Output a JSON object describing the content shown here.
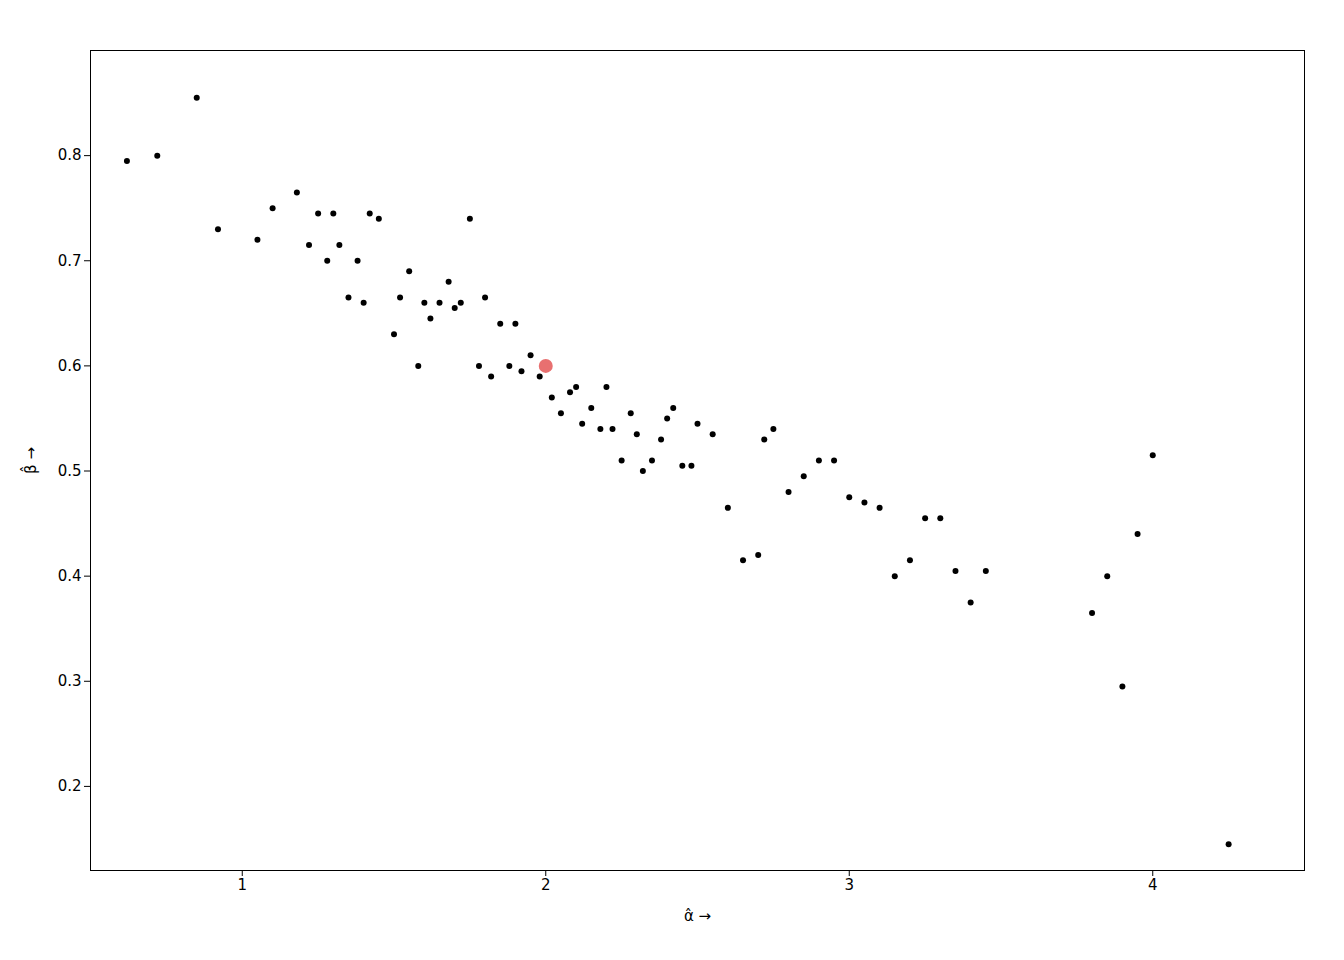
{
  "chart_data": {
    "type": "scatter",
    "xlabel": "α̂",
    "ylabel": "β̂",
    "xlim": [
      0.5,
      4.5
    ],
    "ylim": [
      0.12,
      0.9
    ],
    "xticks": [
      1,
      2,
      3,
      4
    ],
    "yticks": [
      0.2,
      0.3,
      0.4,
      0.5,
      0.6,
      0.7,
      0.8
    ],
    "grid": false,
    "series": [
      {
        "color": "#000000",
        "x": [
          0.62,
          0.72,
          0.85,
          0.92,
          1.05,
          1.1,
          1.18,
          1.22,
          1.25,
          1.28,
          1.3,
          1.32,
          1.35,
          1.38,
          1.4,
          1.42,
          1.45,
          1.5,
          1.52,
          1.55,
          1.58,
          1.6,
          1.62,
          1.65,
          1.68,
          1.7,
          1.72,
          1.75,
          1.78,
          1.8,
          1.82,
          1.85,
          1.88,
          1.9,
          1.92,
          1.95,
          1.98,
          2.0,
          2.02,
          2.05,
          2.08,
          2.1,
          2.12,
          2.15,
          2.18,
          2.2,
          2.22,
          2.25,
          2.28,
          2.3,
          2.32,
          2.35,
          2.38,
          2.4,
          2.42,
          2.45,
          2.48,
          2.5,
          2.55,
          2.6,
          2.65,
          2.7,
          2.72,
          2.75,
          2.8,
          2.85,
          2.9,
          2.95,
          3.0,
          3.05,
          3.1,
          3.15,
          3.2,
          3.25,
          3.3,
          3.35,
          3.4,
          3.45,
          3.8,
          3.85,
          3.9,
          3.95,
          4.0,
          4.25
        ],
        "y": [
          0.795,
          0.8,
          0.855,
          0.73,
          0.72,
          0.75,
          0.765,
          0.715,
          0.745,
          0.7,
          0.745,
          0.715,
          0.665,
          0.7,
          0.66,
          0.745,
          0.74,
          0.63,
          0.665,
          0.69,
          0.6,
          0.66,
          0.645,
          0.66,
          0.68,
          0.655,
          0.66,
          0.74,
          0.6,
          0.665,
          0.59,
          0.64,
          0.6,
          0.64,
          0.595,
          0.61,
          0.59,
          0.6,
          0.57,
          0.555,
          0.575,
          0.58,
          0.545,
          0.56,
          0.54,
          0.58,
          0.54,
          0.51,
          0.555,
          0.535,
          0.5,
          0.51,
          0.53,
          0.55,
          0.56,
          0.505,
          0.505,
          0.545,
          0.535,
          0.465,
          0.415,
          0.42,
          0.53,
          0.54,
          0.48,
          0.495,
          0.51,
          0.51,
          0.475,
          0.47,
          0.465,
          0.4,
          0.415,
          0.455,
          0.455,
          0.405,
          0.375,
          0.405,
          0.365,
          0.4,
          0.295,
          0.44,
          0.515,
          0.145
        ]
      },
      {
        "color": "#e87070",
        "x": [
          2.0
        ],
        "y": [
          0.6
        ]
      }
    ]
  }
}
